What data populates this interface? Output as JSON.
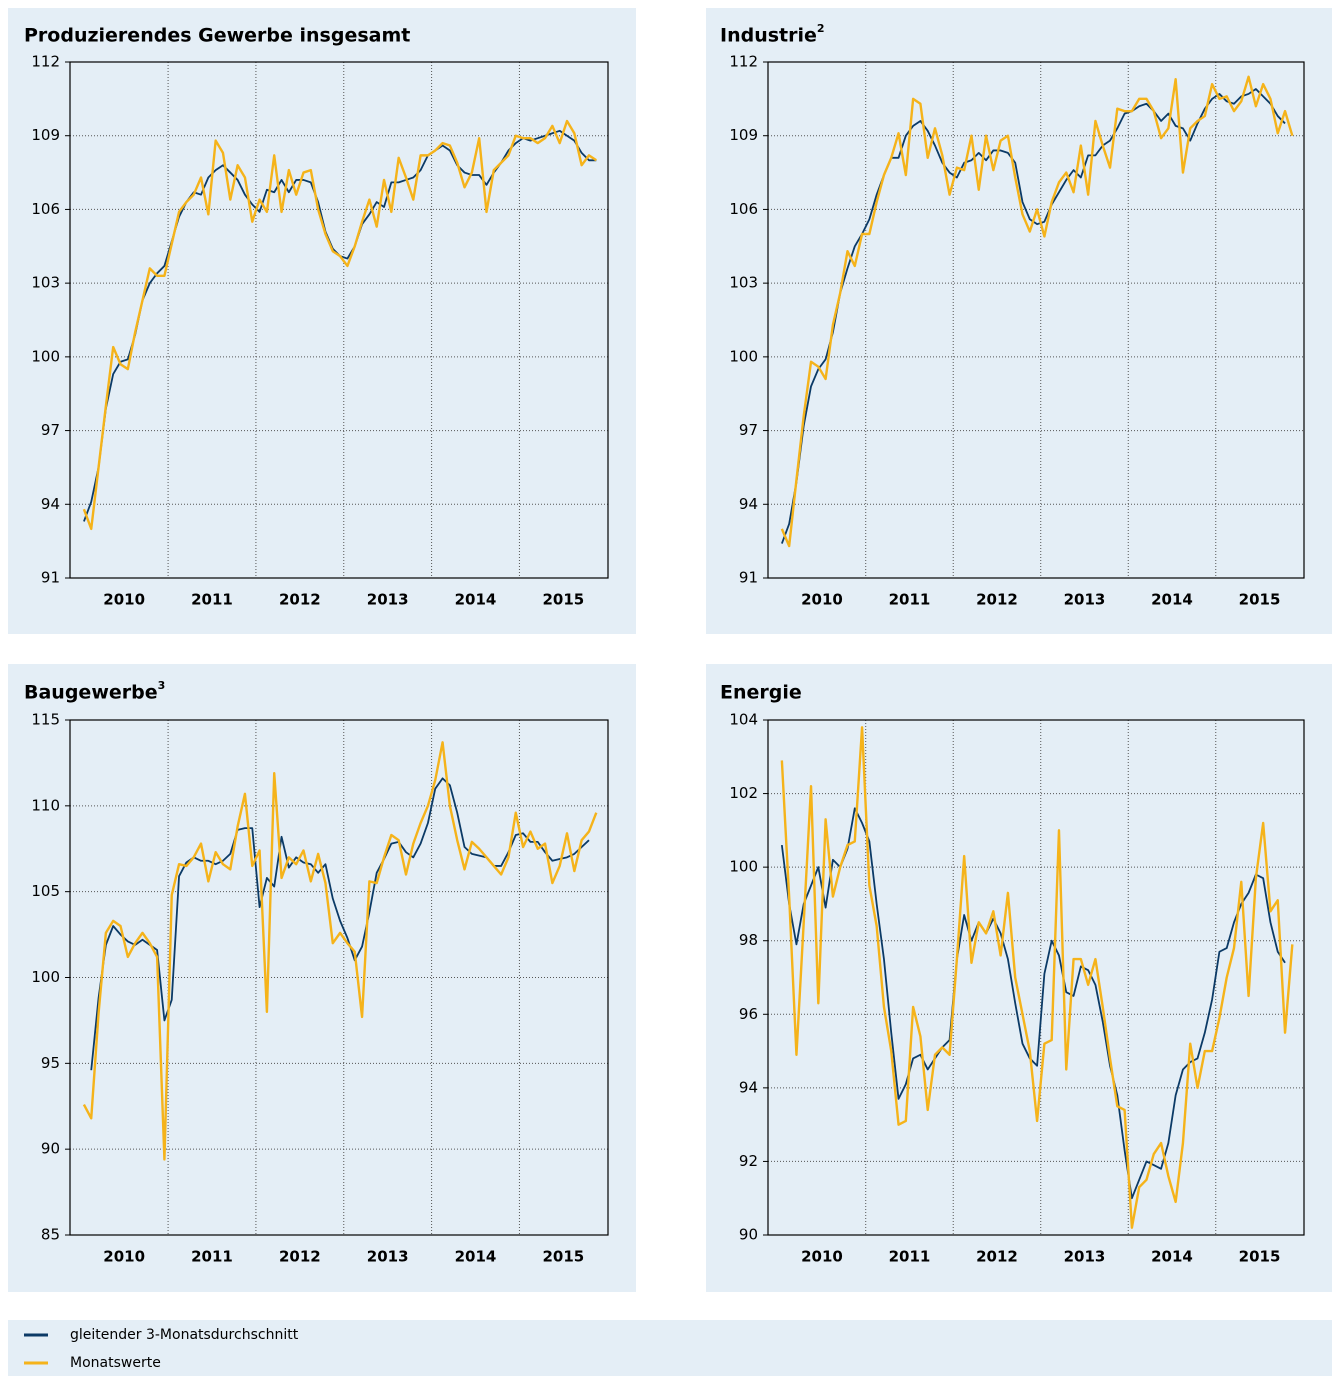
{
  "chart_data": [
    {
      "type": "line",
      "title": "Produzierendes Gewerbe insgesamt",
      "categories": [
        null,
        null,
        null,
        null,
        null,
        null,
        "2010",
        null,
        null,
        null,
        null,
        null,
        null,
        null,
        null,
        null,
        null,
        null,
        "2011",
        null,
        null,
        null,
        null,
        null,
        null,
        null,
        null,
        null,
        null,
        null,
        "2012",
        null,
        null,
        null,
        null,
        null,
        null,
        null,
        null,
        null,
        null,
        null,
        "2013",
        null,
        null,
        null,
        null,
        null,
        null,
        null,
        null,
        null,
        null,
        null,
        "2014",
        null,
        null,
        null,
        null,
        null,
        null,
        null,
        null,
        null,
        null,
        null,
        "2015",
        null,
        null,
        null,
        null
      ],
      "ylim": [
        91,
        112
      ],
      "yticks": [
        91,
        94,
        97,
        100,
        103,
        106,
        109,
        112
      ],
      "grid": true,
      "series": [
        {
          "name": "gleitender 3-Monatsdurchschnitt",
          "color": "#0b3a66",
          "values": [
            93.3,
            94.1,
            95.5,
            97.9,
            99.3,
            99.8,
            99.9,
            100.9,
            102.3,
            103.0,
            103.4,
            103.7,
            104.7,
            105.7,
            106.3,
            106.7,
            106.6,
            107.3,
            107.6,
            107.8,
            107.5,
            107.2,
            106.6,
            106.2,
            105.9,
            106.8,
            106.7,
            107.2,
            106.7,
            107.2,
            107.2,
            107.1,
            106.3,
            105.1,
            104.4,
            104.1,
            104.0,
            104.5,
            105.4,
            105.8,
            106.3,
            106.1,
            107.1,
            107.1,
            107.2,
            107.3,
            107.6,
            108.2,
            108.4,
            108.6,
            108.4,
            107.8,
            107.5,
            107.4,
            107.4,
            107.0,
            107.5,
            107.9,
            108.4,
            108.7,
            108.9,
            108.8,
            108.9,
            109.0,
            109.1,
            109.2,
            109.0,
            108.8,
            108.3,
            108.0,
            108.0
          ]
        },
        {
          "name": "Monatswerte",
          "color": "#f5b31a",
          "values": [
            93.8,
            93.0,
            95.5,
            98.0,
            100.4,
            99.7,
            99.5,
            101.0,
            102.3,
            103.6,
            103.3,
            103.3,
            104.6,
            105.9,
            106.3,
            106.6,
            107.3,
            105.8,
            108.8,
            108.3,
            106.4,
            107.8,
            107.3,
            105.5,
            106.4,
            105.9,
            108.2,
            105.9,
            107.6,
            106.6,
            107.5,
            107.6,
            106.0,
            105.0,
            104.3,
            104.1,
            103.7,
            104.5,
            105.5,
            106.4,
            105.3,
            107.2,
            105.9,
            108.1,
            107.3,
            106.4,
            108.2,
            108.2,
            108.4,
            108.7,
            108.6,
            107.9,
            106.9,
            107.5,
            108.9,
            105.9,
            107.6,
            107.9,
            108.2,
            109.0,
            108.9,
            108.9,
            108.7,
            108.9,
            109.4,
            108.7,
            109.6,
            109.1,
            107.8,
            108.2,
            108.0
          ]
        }
      ]
    },
    {
      "type": "line",
      "title": "Industrie",
      "title_note": "2",
      "categories": [
        null,
        null,
        null,
        null,
        null,
        null,
        "2010",
        null,
        null,
        null,
        null,
        null,
        null,
        null,
        null,
        null,
        null,
        null,
        "2011",
        null,
        null,
        null,
        null,
        null,
        null,
        null,
        null,
        null,
        null,
        null,
        "2012",
        null,
        null,
        null,
        null,
        null,
        null,
        null,
        null,
        null,
        null,
        null,
        "2013",
        null,
        null,
        null,
        null,
        null,
        null,
        null,
        null,
        null,
        null,
        null,
        "2014",
        null,
        null,
        null,
        null,
        null,
        null,
        null,
        null,
        null,
        null,
        null,
        "2015",
        null,
        null,
        null,
        null
      ],
      "ylim": [
        91,
        112
      ],
      "yticks": [
        91,
        94,
        97,
        100,
        103,
        106,
        109,
        112
      ],
      "grid": true,
      "series": [
        {
          "color": "#0b3a66",
          "values": [
            92.4,
            93.2,
            94.9,
            97.2,
            98.8,
            99.5,
            99.9,
            101.0,
            102.6,
            103.6,
            104.5,
            105.0,
            105.6,
            106.6,
            107.4,
            108.1,
            108.1,
            109.0,
            109.4,
            109.6,
            109.2,
            108.6,
            107.9,
            107.5,
            107.3,
            107.9,
            108.0,
            108.3,
            108.0,
            108.4,
            108.4,
            108.3,
            107.9,
            106.3,
            105.6,
            105.4,
            105.5,
            106.2,
            106.7,
            107.2,
            107.6,
            107.3,
            108.2,
            108.2,
            108.6,
            108.8,
            109.3,
            109.9,
            110.0,
            110.2,
            110.3,
            110.0,
            109.6,
            109.9,
            109.4,
            109.3,
            108.8,
            109.5,
            110.1,
            110.5,
            110.7,
            110.4,
            110.3,
            110.6,
            110.7,
            110.9,
            110.6,
            110.3,
            109.8,
            109.5,
            null
          ]
        },
        {
          "color": "#f5b31a",
          "values": [
            93.0,
            92.3,
            95.0,
            97.6,
            99.8,
            99.6,
            99.1,
            101.3,
            102.6,
            104.3,
            103.7,
            105.0,
            105.0,
            106.3,
            107.4,
            108.1,
            109.1,
            107.4,
            110.5,
            110.3,
            108.1,
            109.3,
            108.2,
            106.6,
            107.7,
            107.6,
            109.0,
            106.8,
            109.0,
            107.6,
            108.8,
            109.0,
            107.3,
            105.8,
            105.1,
            106.0,
            104.9,
            106.3,
            107.1,
            107.5,
            106.7,
            108.6,
            106.6,
            109.6,
            108.6,
            107.7,
            110.1,
            110.0,
            110.0,
            110.5,
            110.5,
            110.0,
            108.9,
            109.3,
            111.3,
            107.5,
            109.3,
            109.6,
            109.8,
            111.1,
            110.5,
            110.6,
            110.0,
            110.4,
            111.4,
            110.2,
            111.1,
            110.5,
            109.1,
            110.0,
            109.0
          ]
        }
      ]
    },
    {
      "type": "line",
      "title": "Baugewerbe",
      "title_note": "3",
      "categories": [
        null,
        null,
        null,
        null,
        null,
        null,
        "2010",
        null,
        null,
        null,
        null,
        null,
        null,
        null,
        null,
        null,
        null,
        null,
        "2011",
        null,
        null,
        null,
        null,
        null,
        null,
        null,
        null,
        null,
        null,
        null,
        "2012",
        null,
        null,
        null,
        null,
        null,
        null,
        null,
        null,
        null,
        null,
        null,
        "2013",
        null,
        null,
        null,
        null,
        null,
        null,
        null,
        null,
        null,
        null,
        null,
        "2014",
        null,
        null,
        null,
        null,
        null,
        null,
        null,
        null,
        null,
        null,
        null,
        "2015",
        null,
        null,
        null,
        null
      ],
      "ylim": [
        85,
        115
      ],
      "yticks": [
        85,
        90,
        95,
        100,
        105,
        110,
        115
      ],
      "grid": true,
      "series": [
        {
          "color": "#0b3a66",
          "values": [
            null,
            94.6,
            98.8,
            101.9,
            103.0,
            102.5,
            102.1,
            101.9,
            102.2,
            101.9,
            101.6,
            97.5,
            98.7,
            105.9,
            106.7,
            107.0,
            106.8,
            106.8,
            106.6,
            106.8,
            107.2,
            108.6,
            108.7,
            108.7,
            104.1,
            105.8,
            105.3,
            108.2,
            106.4,
            107.0,
            106.7,
            106.6,
            106.1,
            106.6,
            104.6,
            103.3,
            102.3,
            101.0,
            101.8,
            103.8,
            106.1,
            106.9,
            107.8,
            107.9,
            107.3,
            107.0,
            107.8,
            109.0,
            111.0,
            111.6,
            111.2,
            109.6,
            107.6,
            107.2,
            107.1,
            107.0,
            106.5,
            106.5,
            107.3,
            108.3,
            108.4,
            107.9,
            107.9,
            107.3,
            106.8,
            106.9,
            107.0,
            107.2,
            107.6,
            108.0,
            null
          ]
        },
        {
          "color": "#f5b31a",
          "values": [
            92.6,
            91.8,
            97.9,
            102.6,
            103.3,
            103.0,
            101.2,
            102.0,
            102.6,
            102.0,
            101.2,
            89.4,
            104.8,
            106.6,
            106.5,
            107.0,
            107.8,
            105.6,
            107.3,
            106.6,
            106.3,
            108.8,
            110.7,
            106.5,
            107.4,
            98.0,
            111.9,
            105.8,
            107.0,
            106.6,
            107.4,
            105.6,
            107.2,
            105.5,
            102.0,
            102.6,
            102.0,
            101.5,
            97.7,
            105.6,
            105.5,
            107.0,
            108.3,
            108.0,
            106.0,
            107.8,
            109.0,
            110.0,
            111.5,
            113.7,
            110.0,
            108.0,
            106.3,
            107.9,
            107.5,
            107.0,
            106.5,
            106.0,
            107.0,
            109.6,
            107.6,
            108.5,
            107.5,
            107.8,
            105.5,
            106.5,
            108.4,
            106.2,
            108.0,
            108.5,
            109.6
          ]
        }
      ]
    },
    {
      "type": "line",
      "title": "Energie",
      "categories": [
        null,
        null,
        null,
        null,
        null,
        null,
        "2010",
        null,
        null,
        null,
        null,
        null,
        null,
        null,
        null,
        null,
        null,
        null,
        "2011",
        null,
        null,
        null,
        null,
        null,
        null,
        null,
        null,
        null,
        null,
        null,
        "2012",
        null,
        null,
        null,
        null,
        null,
        null,
        null,
        null,
        null,
        null,
        null,
        "2013",
        null,
        null,
        null,
        null,
        null,
        null,
        null,
        null,
        null,
        null,
        null,
        "2014",
        null,
        null,
        null,
        null,
        null,
        null,
        null,
        null,
        null,
        null,
        null,
        "2015",
        null,
        null,
        null,
        null
      ],
      "ylim": [
        90,
        104
      ],
      "yticks": [
        90,
        92,
        94,
        96,
        98,
        100,
        102,
        104
      ],
      "grid": true,
      "series": [
        {
          "color": "#0b3a66",
          "values": [
            100.6,
            99.0,
            97.9,
            99.0,
            99.5,
            100.0,
            98.9,
            100.2,
            100.0,
            100.5,
            101.6,
            101.2,
            100.7,
            99.0,
            97.5,
            95.5,
            93.7,
            94.1,
            94.8,
            94.9,
            94.5,
            94.8,
            95.1,
            95.3,
            97.5,
            98.7,
            98.0,
            98.5,
            98.2,
            98.6,
            98.2,
            97.5,
            96.3,
            95.2,
            94.8,
            94.6,
            97.1,
            98.0,
            97.6,
            96.6,
            96.5,
            97.3,
            97.2,
            96.8,
            95.8,
            94.6,
            93.8,
            92.3,
            91.0,
            91.5,
            92.0,
            91.9,
            91.8,
            92.5,
            93.8,
            94.5,
            94.7,
            94.8,
            95.5,
            96.4,
            97.7,
            97.8,
            98.5,
            99.0,
            99.3,
            99.8,
            99.7,
            98.5,
            97.7,
            97.4,
            null
          ]
        },
        {
          "color": "#f5b31a",
          "values": [
            102.9,
            99.2,
            94.9,
            98.5,
            102.2,
            96.3,
            101.3,
            99.2,
            100.0,
            100.6,
            100.7,
            103.8,
            99.5,
            98.4,
            96.2,
            95.0,
            93.0,
            93.1,
            96.2,
            95.4,
            93.4,
            94.9,
            95.1,
            94.9,
            97.5,
            100.3,
            97.4,
            98.5,
            98.2,
            98.8,
            97.6,
            99.3,
            97.0,
            96.0,
            95.0,
            93.1,
            95.2,
            95.3,
            101.0,
            94.5,
            97.5,
            97.5,
            96.8,
            97.5,
            96.2,
            94.8,
            93.5,
            93.4,
            90.2,
            91.3,
            91.5,
            92.2,
            92.5,
            91.6,
            90.9,
            92.5,
            95.2,
            94.0,
            95.0,
            95.0,
            95.9,
            97.0,
            97.8,
            99.6,
            96.5,
            99.7,
            101.2,
            98.8,
            99.1,
            95.5,
            97.9
          ]
        }
      ]
    }
  ]
}
